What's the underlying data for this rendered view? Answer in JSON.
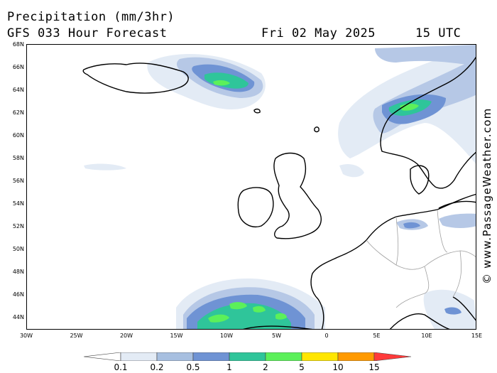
{
  "header": {
    "title": "Precipitation (mm/3hr)",
    "subtitle": "GFS 033 Hour Forecast",
    "date": "Fri 02 May 2025",
    "time": "15 UTC"
  },
  "credit": "© www.PassageWeather.com",
  "lat_labels": [
    "66N",
    "64N",
    "62N",
    "60N",
    "58N",
    "56N",
    "54N",
    "52N",
    "50N",
    "48N",
    "46N",
    "44N"
  ],
  "lat_top": "68N",
  "lon_labels": [
    "30W",
    "25W",
    "20W",
    "15W",
    "10W",
    "5W",
    "0",
    "5E",
    "10E",
    "15E"
  ],
  "legend": {
    "labels": [
      "0.1",
      "0.2",
      "0.5",
      "1",
      "2",
      "5",
      "10",
      "15"
    ],
    "colors": [
      "#ffffff",
      "#e3ebf5",
      "#a7bfe0",
      "#6f93d4",
      "#2fc59a",
      "#5cf05a",
      "#ffe600",
      "#ff9a00",
      "#ff3a3a"
    ]
  },
  "colors": {
    "light": "#e3ebf5",
    "pale": "#b6c8e6",
    "blue": "#6f93d4",
    "teal": "#2fc59a",
    "green": "#5cf05a"
  }
}
